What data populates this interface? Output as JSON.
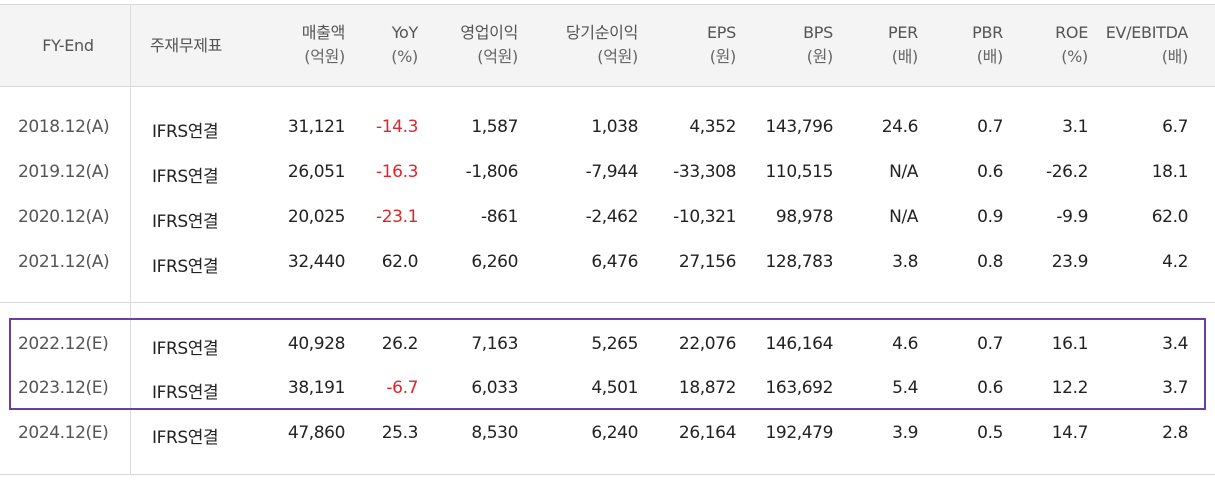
{
  "table": {
    "headers": [
      {
        "label": "FY-End",
        "unit": ""
      },
      {
        "label": "주재무제표",
        "unit": ""
      },
      {
        "label": "매출액",
        "unit": "(억원)"
      },
      {
        "label": "YoY",
        "unit": "(%)"
      },
      {
        "label": "영업이익",
        "unit": "(억원)"
      },
      {
        "label": "당기순이익",
        "unit": "(억원)"
      },
      {
        "label": "EPS",
        "unit": "(원)"
      },
      {
        "label": "BPS",
        "unit": "(원)"
      },
      {
        "label": "PER",
        "unit": "(배)"
      },
      {
        "label": "PBR",
        "unit": "(배)"
      },
      {
        "label": "ROE",
        "unit": "(%)"
      },
      {
        "label": "EV/EBITDA",
        "unit": "(배)"
      }
    ],
    "rows": [
      {
        "fy": "2018.12(A)",
        "basis": "IFRS연결",
        "sales": "31,121",
        "yoy": "-14.3",
        "op": "1,587",
        "net": "1,038",
        "eps": "4,352",
        "bps": "143,796",
        "per": "24.6",
        "pbr": "0.7",
        "roe": "3.1",
        "ev": "6.7",
        "yoy_neg": true
      },
      {
        "fy": "2019.12(A)",
        "basis": "IFRS연결",
        "sales": "26,051",
        "yoy": "-16.3",
        "op": "-1,806",
        "net": "-7,944",
        "eps": "-33,308",
        "bps": "110,515",
        "per": "N/A",
        "pbr": "0.6",
        "roe": "-26.2",
        "ev": "18.1",
        "yoy_neg": true
      },
      {
        "fy": "2020.12(A)",
        "basis": "IFRS연결",
        "sales": "20,025",
        "yoy": "-23.1",
        "op": "-861",
        "net": "-2,462",
        "eps": "-10,321",
        "bps": "98,978",
        "per": "N/A",
        "pbr": "0.9",
        "roe": "-9.9",
        "ev": "62.0",
        "yoy_neg": true
      },
      {
        "fy": "2021.12(A)",
        "basis": "IFRS연결",
        "sales": "32,440",
        "yoy": "62.0",
        "op": "6,260",
        "net": "6,476",
        "eps": "27,156",
        "bps": "128,783",
        "per": "3.8",
        "pbr": "0.8",
        "roe": "23.9",
        "ev": "4.2",
        "yoy_neg": false
      },
      {
        "fy": "2022.12(E)",
        "basis": "IFRS연결",
        "sales": "40,928",
        "yoy": "26.2",
        "op": "7,163",
        "net": "5,265",
        "eps": "22,076",
        "bps": "146,164",
        "per": "4.6",
        "pbr": "0.7",
        "roe": "16.1",
        "ev": "3.4",
        "yoy_neg": false
      },
      {
        "fy": "2023.12(E)",
        "basis": "IFRS연결",
        "sales": "38,191",
        "yoy": "-6.7",
        "op": "6,033",
        "net": "4,501",
        "eps": "18,872",
        "bps": "163,692",
        "per": "5.4",
        "pbr": "0.6",
        "roe": "12.2",
        "ev": "3.7",
        "yoy_neg": true
      },
      {
        "fy": "2024.12(E)",
        "basis": "IFRS연결",
        "sales": "47,860",
        "yoy": "25.3",
        "op": "8,530",
        "net": "6,240",
        "eps": "26,164",
        "bps": "192,479",
        "per": "3.9",
        "pbr": "0.5",
        "roe": "14.7",
        "ev": "2.8",
        "yoy_neg": false
      }
    ]
  },
  "colors": {
    "negative": "#e0252a",
    "highlight_border": "#6b3fa0",
    "header_bg": "#f4f4f4"
  }
}
